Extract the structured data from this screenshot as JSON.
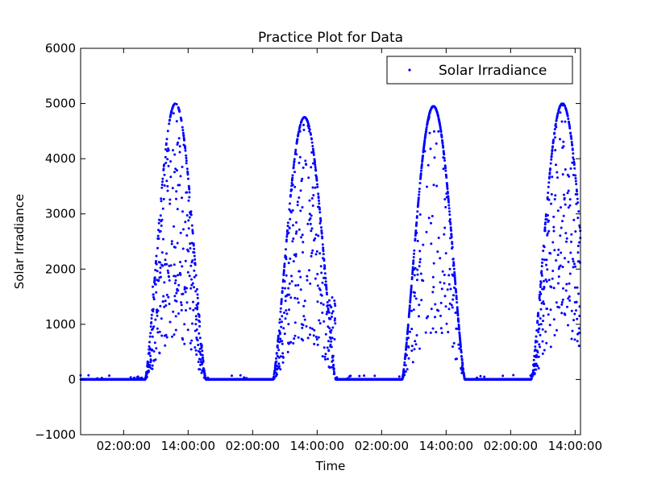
{
  "chart_data": {
    "type": "scatter",
    "title": "Practice Plot for Data",
    "xlabel": "Time",
    "ylabel": "Solar Irradiance",
    "ylim": [
      -1000,
      6000
    ],
    "yticks": [
      -1000,
      0,
      1000,
      2000,
      3000,
      4000,
      5000,
      6000
    ],
    "xlim_hours": [
      -6,
      87
    ],
    "xticks": [
      {
        "hour": 2,
        "label": "02:00:00"
      },
      {
        "hour": 14,
        "label": "14:00:00"
      },
      {
        "hour": 26,
        "label": "02:00:00"
      },
      {
        "hour": 38,
        "label": "14:00:00"
      },
      {
        "hour": 50,
        "label": "02:00:00"
      },
      {
        "hour": 62,
        "label": "14:00:00"
      },
      {
        "hour": 74,
        "label": "02:00:00"
      },
      {
        "hour": 86,
        "label": "14:00:00"
      }
    ],
    "legend": {
      "position": "top-right"
    },
    "grid": false,
    "series": [
      {
        "name": "Solar Irradiance",
        "color": "#0000ff",
        "days": [
          {
            "sunrise": 6.0,
            "sunset": 17.3,
            "peak": 11.8,
            "max": 5000,
            "cloudy": 0.75,
            "bumps": [
              {
                "h": 8.0,
                "v": 1700
              },
              {
                "h": 13.7,
                "v": 3800
              }
            ]
          },
          {
            "sunrise": 29.8,
            "sunset": 41.5,
            "peak": 35.5,
            "max": 4750,
            "cloudy": 0.55,
            "bumps": [
              {
                "h": 40.8,
                "v": 1500
              }
            ]
          },
          {
            "sunrise": 53.8,
            "sunset": 65.5,
            "peak": 59.7,
            "max": 4950,
            "cloudy": 0.35,
            "bumps": []
          },
          {
            "sunrise": 77.8,
            "sunset": 89.5,
            "peak": 83.7,
            "max": 5000,
            "cloudy": 0.6,
            "bumps": []
          }
        ]
      }
    ]
  }
}
